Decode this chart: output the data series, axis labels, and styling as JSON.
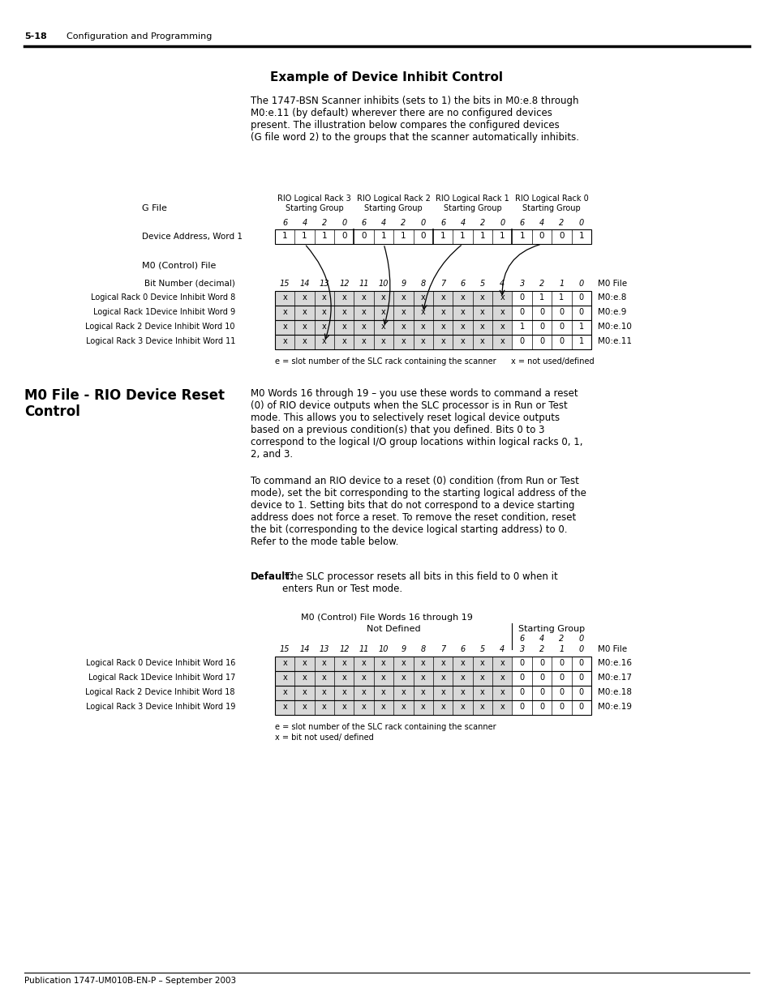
{
  "page_header_num": "5-18",
  "page_header_text": "Configuration and Programming",
  "section1_title": "Example of Device Inhibit Control",
  "section1_para": "The 1747-BSN Scanner inhibits (sets to 1) the bits in M0:e.8 through\nM0:e.11 (by default) wherever there are no configured devices\npresent. The illustration below compares the configured devices\n(G file word 2) to the groups that the scanner automatically inhibits.",
  "gfile_label": "G File",
  "dev_addr_label": "Device Address, Word 1",
  "dev_addr_values": [
    "1",
    "1",
    "1",
    "0",
    "0",
    "1",
    "1",
    "0",
    "1",
    "1",
    "1",
    "1",
    "1",
    "0",
    "0",
    "1"
  ],
  "m0control_label": "M0 (Control) File",
  "bit_num_label": "Bit Number (decimal)",
  "m0file_label_right": "M0 File",
  "inhibit_rows": [
    {
      "label": "Logical Rack 0 Device Inhibit Word 8",
      "vals": [
        "0",
        "1",
        "1",
        "0"
      ],
      "m0": "M0:e.8"
    },
    {
      "label": "Logical Rack 1Device Inhibit Word 9",
      "vals": [
        "0",
        "0",
        "0",
        "0"
      ],
      "m0": "M0:e.9"
    },
    {
      "label": "Logical Rack 2 Device Inhibit Word 10",
      "vals": [
        "1",
        "0",
        "0",
        "1"
      ],
      "m0": "M0:e.10"
    },
    {
      "label": "Logical Rack 3 Device Inhibit Word 11",
      "vals": [
        "0",
        "0",
        "0",
        "1"
      ],
      "m0": "M0:e.11"
    }
  ],
  "footnote1a": "e = slot number of the SLC rack containing the scanner",
  "footnote1b": "x = not used/defined",
  "section2_title_line1": "M0 File - RIO Device Reset",
  "section2_title_line2": "Control",
  "section2_para1": "M0 Words 16 through 19 – you use these words to command a reset\n(0) of RIO device outputs when the SLC processor is in Run or Test\nmode. This allows you to selectively reset logical device outputs\nbased on a previous condition(s) that you defined. Bits 0 to 3\ncorrespond to the logical I/O group locations within logical racks 0, 1,\n2, and 3.",
  "section2_para2": "To command an RIO device to a reset (0) condition (from Run or Test\nmode), set the bit corresponding to the starting logical address of the\ndevice to 1. Setting bits that do not correspond to a device starting\naddress does not force a reset. To remove the reset condition, reset\nthe bit (corresponding to the device logical starting address) to 0.\nRefer to the mode table below.",
  "section2_para3_bold": "Default:",
  "section2_para3_rest": " The SLC processor resets all bits in this field to 0 when it\nenters Run or Test mode.",
  "table2_title": "M0 (Control) File Words 16 through 19",
  "table2_notdefined": "Not Defined",
  "table2_startgroup": "Starting Group",
  "table2_rows": [
    {
      "label": "Logical Rack 0 Device Inhibit Word 16",
      "vals": [
        "0",
        "0",
        "0",
        "0"
      ],
      "m0": "M0:e.16"
    },
    {
      "label": "Logical Rack 1Device Inhibit Word 17",
      "vals": [
        "0",
        "0",
        "0",
        "0"
      ],
      "m0": "M0:e.17"
    },
    {
      "label": "Logical Rack 2 Device Inhibit Word 18",
      "vals": [
        "0",
        "0",
        "0",
        "0"
      ],
      "m0": "M0:e.18"
    },
    {
      "label": "Logical Rack 3 Device Inhibit Word 19",
      "vals": [
        "0",
        "0",
        "0",
        "0"
      ],
      "m0": "M0:e.19"
    }
  ],
  "footnote2a": "e = slot number of the SLC rack containing the scanner",
  "footnote2b": "x = bit not used/ defined",
  "page_footer": "Publication 1747-UM010B-EN-P – September 2003",
  "gray_color": "#d8d8d8"
}
